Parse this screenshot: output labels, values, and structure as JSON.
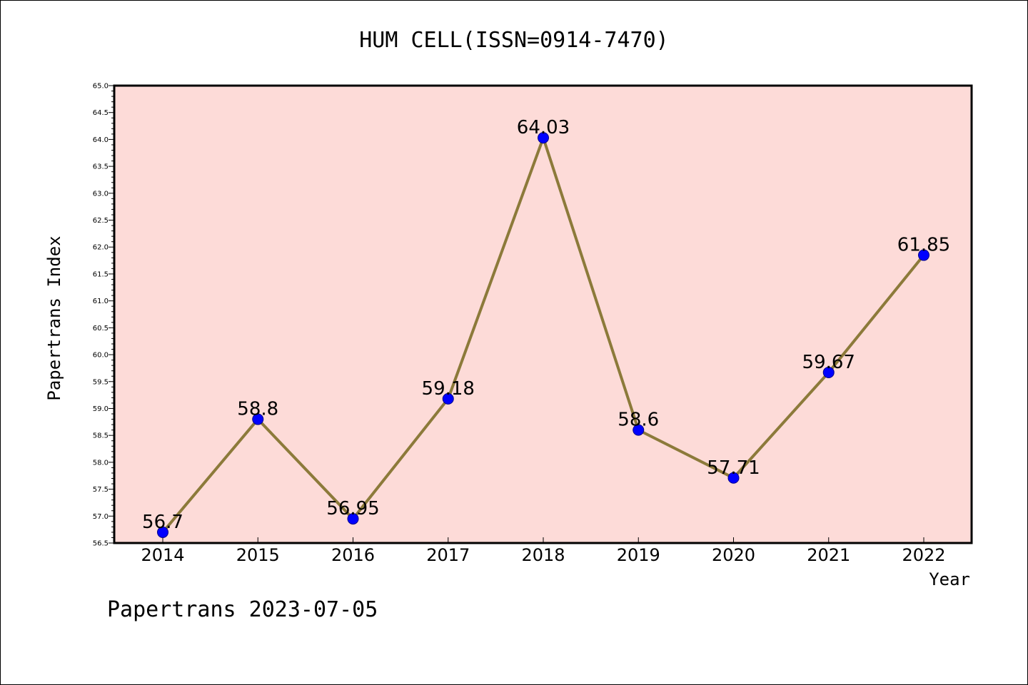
{
  "chart_data": {
    "type": "line",
    "title": "HUM CELL(ISSN=0914-7470)",
    "xlabel": "Year",
    "ylabel": "Papertrans Index",
    "categories": [
      "2014",
      "2015",
      "2016",
      "2017",
      "2018",
      "2019",
      "2020",
      "2021",
      "2022"
    ],
    "series": [
      {
        "values": [
          56.7,
          58.8,
          56.95,
          59.18,
          64.03,
          58.6,
          57.71,
          59.67,
          61.85
        ],
        "labels": [
          "56.7",
          "58.8",
          "56.95",
          "59.18",
          "64.03",
          "58.6",
          "57.71",
          "59.67",
          "61.85"
        ]
      }
    ],
    "ylim": [
      56.5,
      65.0
    ],
    "yticks": [
      "56.5",
      "57.0",
      "57.5",
      "58.0",
      "58.5",
      "59.0",
      "59.5",
      "60.0",
      "60.5",
      "61.0",
      "61.5",
      "62.0",
      "62.5",
      "63.0",
      "63.5",
      "64.0",
      "64.5",
      "65.0"
    ],
    "grid": false,
    "colors": {
      "plot_background": "#fddbd8",
      "line": "#8c7a3a",
      "marker": "#0000ff",
      "marker_edge": "#00008b"
    }
  },
  "footer": "Papertrans 2023-07-05"
}
